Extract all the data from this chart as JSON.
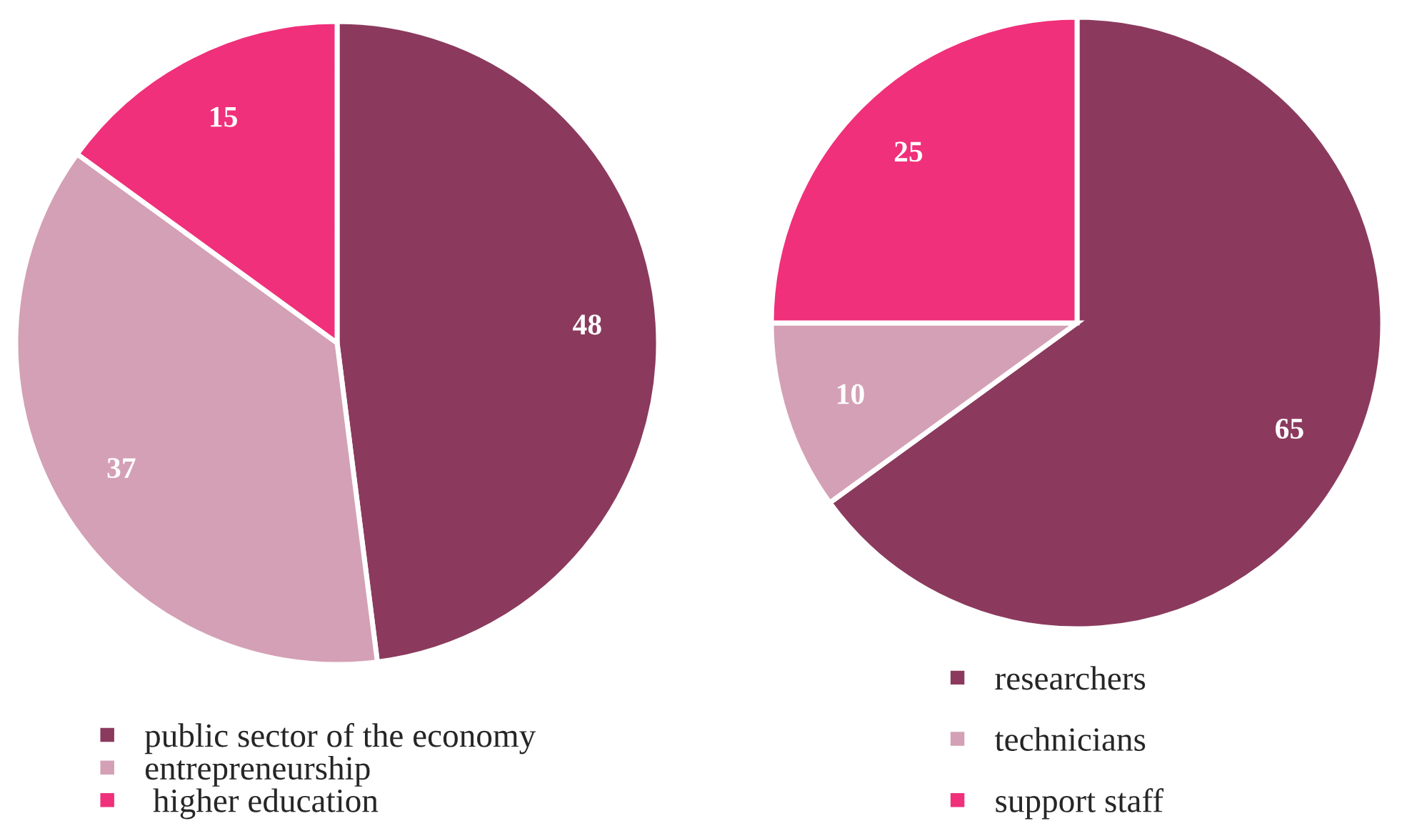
{
  "chart_data": [
    {
      "type": "pie",
      "categories": [
        "public sector of the economy",
        "entrepreneurship",
        " higher education"
      ],
      "values": [
        48,
        37,
        15
      ],
      "colors": [
        "#8b3a5e",
        "#d4a0b5",
        "#f0307a"
      ],
      "data_labels": true,
      "legend": "bottom"
    },
    {
      "type": "pie",
      "categories": [
        "researchers",
        "technicians",
        "support staff"
      ],
      "values": [
        65,
        10,
        25
      ],
      "colors": [
        "#8b3a5e",
        "#d4a0b5",
        "#f0307a"
      ],
      "data_labels": true,
      "legend": "bottom"
    }
  ]
}
